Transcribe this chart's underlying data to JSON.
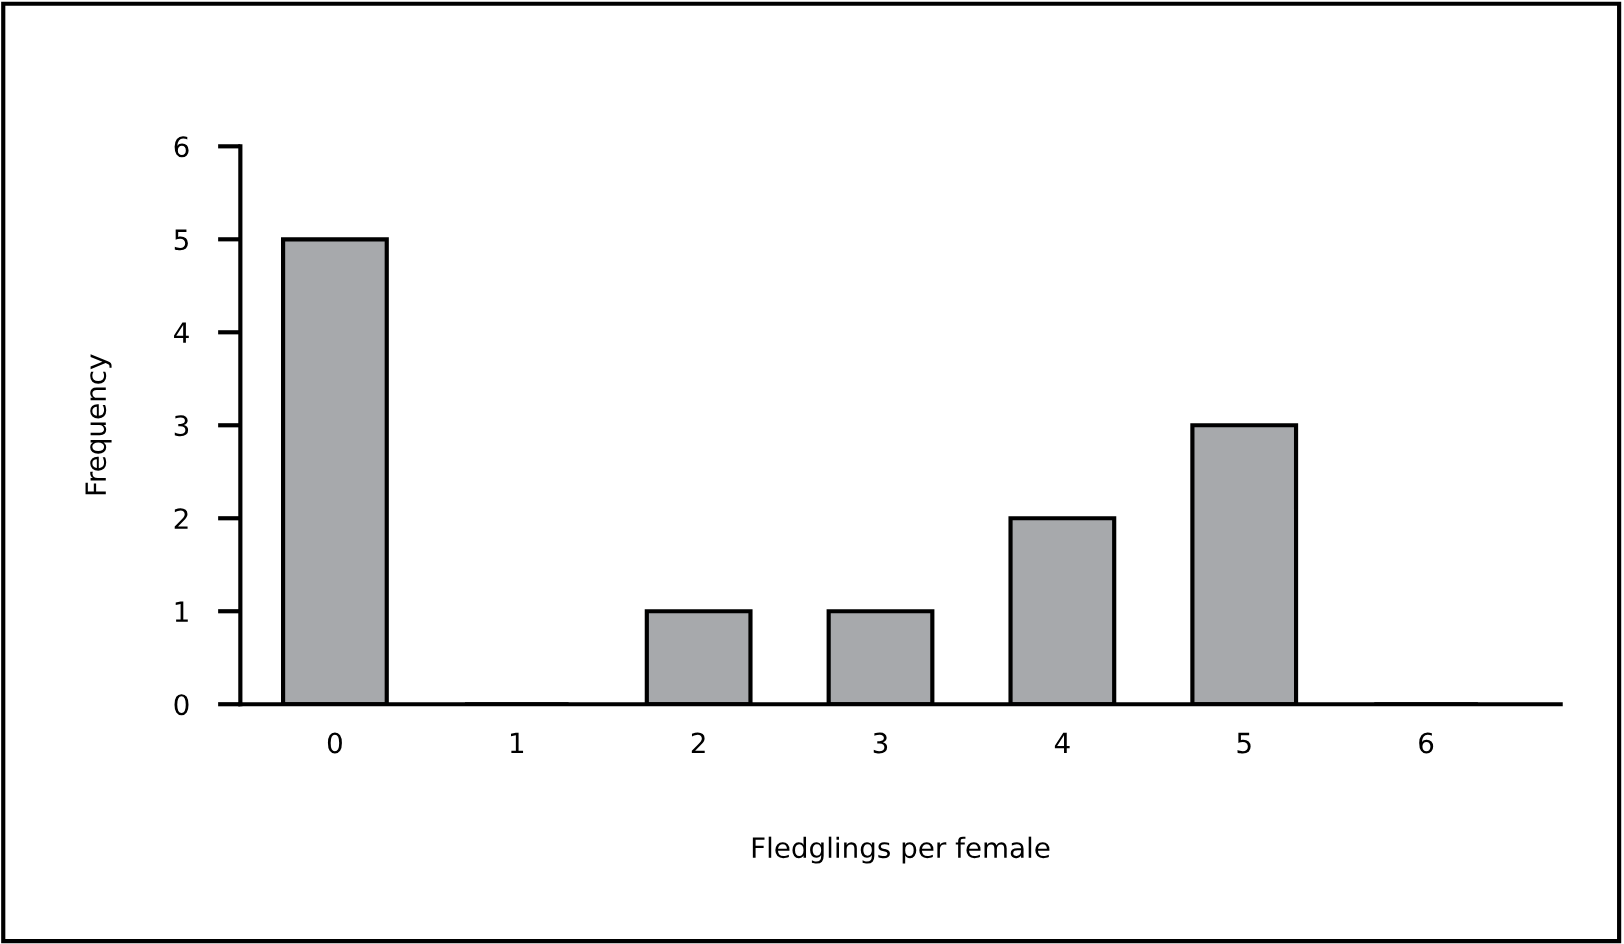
{
  "chart_data": {
    "type": "bar",
    "xlabel": "Fledglings per female",
    "ylabel": "Frequency",
    "categories": [
      "0",
      "1",
      "2",
      "3",
      "4",
      "5",
      "6"
    ],
    "values": [
      5,
      0,
      1,
      1,
      2,
      3,
      0
    ],
    "color": "#a7a9ac",
    "ylim": [
      0,
      6
    ],
    "yticks": [
      0,
      1,
      2,
      3,
      4,
      5,
      6
    ],
    "grid": false,
    "legend": false
  }
}
